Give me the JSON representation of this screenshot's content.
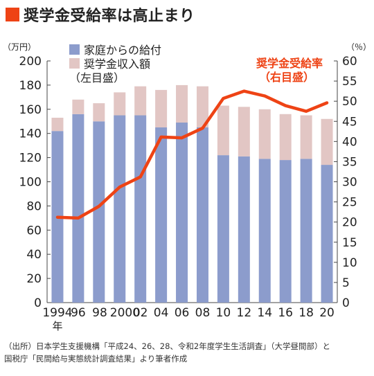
{
  "title": "奨学金受給率は高止まり",
  "colors": {
    "accent": "#ee4315",
    "bar_family": "#8c9ccc",
    "bar_scholarship": "#e2c6c4",
    "line": "#ee4315",
    "text": "#222222"
  },
  "left_axis_unit": "（万円）",
  "right_axis_unit": "（％）",
  "x_tick_labels": [
    "1994",
    "96",
    "98",
    "2000",
    "02",
    "04",
    "06",
    "08",
    "10",
    "12",
    "14",
    "16",
    "18",
    "20"
  ],
  "x_year_suffix": "年",
  "legend": {
    "family": "家庭からの給付",
    "scholarship": "奨学金収入額",
    "left_note": "（左目盛）"
  },
  "line_label": {
    "name": "奨学金受給率",
    "note": "（右目盛）"
  },
  "chart_data": {
    "type": "bar",
    "stacked": true,
    "categories": [
      "1994",
      "96",
      "98",
      "2000",
      "02",
      "04",
      "06",
      "08",
      "10",
      "12",
      "14",
      "16",
      "18",
      "20"
    ],
    "series": [
      {
        "name": "家庭からの給付",
        "axis": "left",
        "values": [
          142,
          156,
          150,
          155,
          155,
          145,
          149,
          145,
          122,
          121,
          119,
          118,
          119,
          114
        ]
      },
      {
        "name": "奨学金収入額",
        "axis": "left",
        "values": [
          11,
          12,
          15,
          19,
          24,
          31,
          31,
          34,
          41,
          41,
          41,
          38,
          36,
          38
        ]
      },
      {
        "name": "奨学金受給率",
        "type": "line",
        "axis": "right",
        "values": [
          21.2,
          21.0,
          23.9,
          28.7,
          31.2,
          41.1,
          40.9,
          43.3,
          50.7,
          52.5,
          51.3,
          48.9,
          47.5,
          49.6
        ]
      }
    ],
    "y_left": {
      "unit": "（万円）",
      "lim": [
        0,
        200
      ],
      "ticks": [
        0,
        20,
        40,
        60,
        80,
        100,
        120,
        140,
        160,
        180,
        200
      ]
    },
    "y_right": {
      "unit": "（％）",
      "lim": [
        0,
        60
      ],
      "ticks": [
        0,
        5,
        10,
        15,
        20,
        25,
        30,
        35,
        40,
        45,
        50,
        55,
        60
      ]
    },
    "legend_placement": "top-left",
    "grid": false
  },
  "source_lines": [
    "（出所）日本学生支援機構「平成24、26、28、令和2年度学生生活調査」（大学昼間部）と",
    "国税庁「民間給与実態統計調査結果」より筆者作成"
  ]
}
